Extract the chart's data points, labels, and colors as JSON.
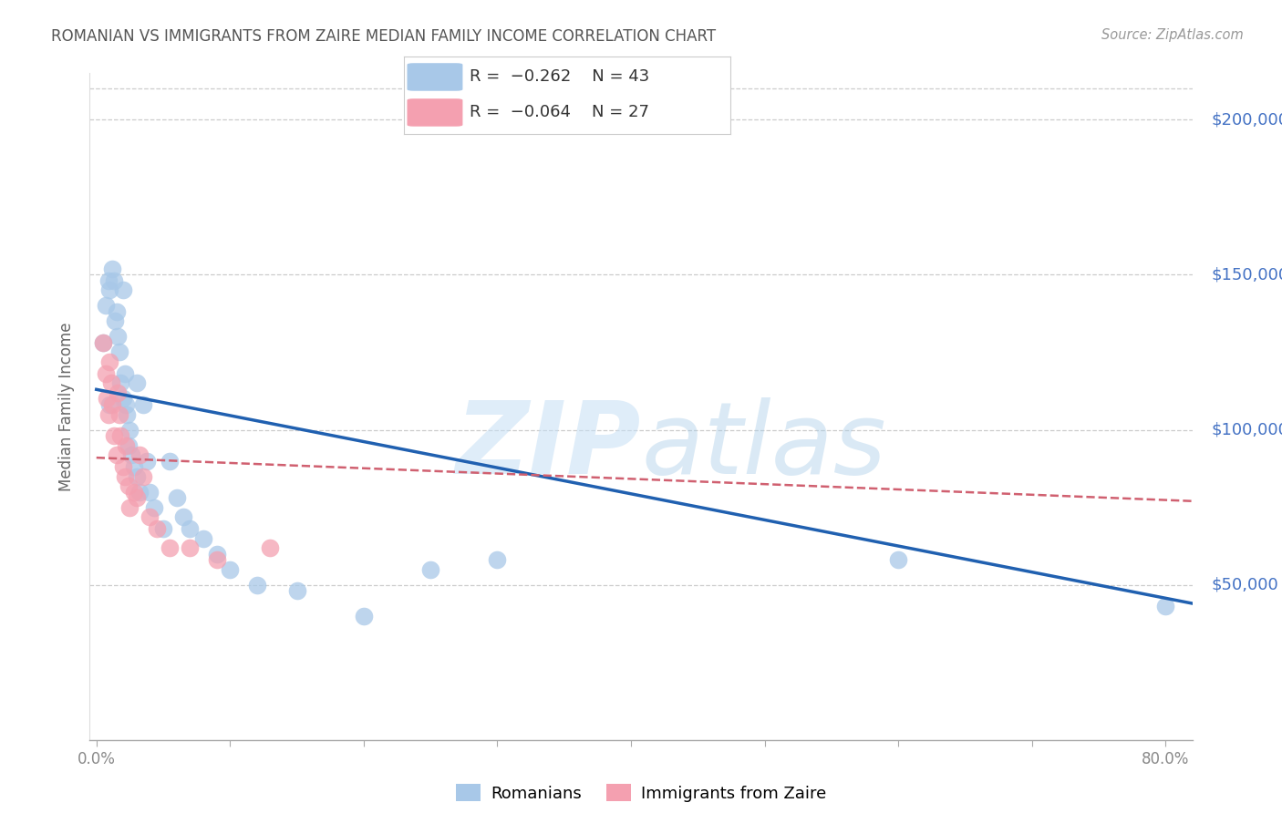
{
  "title": "ROMANIAN VS IMMIGRANTS FROM ZAIRE MEDIAN FAMILY INCOME CORRELATION CHART",
  "source": "Source: ZipAtlas.com",
  "ylabel": "Median Family Income",
  "ytick_labels": [
    "$50,000",
    "$100,000",
    "$150,000",
    "$200,000"
  ],
  "ytick_vals": [
    50000,
    100000,
    150000,
    200000
  ],
  "ylim": [
    0,
    215000
  ],
  "xlim": [
    -0.005,
    0.82
  ],
  "blue_color": "#a8c8e8",
  "pink_color": "#f4a0b0",
  "trend_blue": "#2060b0",
  "trend_pink": "#d06070",
  "legend_label_blue": "Romanians",
  "legend_label_pink": "Immigrants from Zaire",
  "watermark_zip": "ZIP",
  "watermark_atlas": "atlas",
  "grid_color": "#cccccc",
  "bg_color": "#ffffff",
  "title_color": "#555555",
  "axis_label_color": "#666666",
  "ytick_color": "#4472c4",
  "xtick_color": "#888888",
  "blue_trend_x": [
    0.0,
    0.82
  ],
  "blue_trend_y": [
    113000,
    44000
  ],
  "pink_trend_x": [
    0.0,
    0.82
  ],
  "pink_trend_y": [
    91000,
    77000
  ],
  "blue_x": [
    0.005,
    0.007,
    0.009,
    0.01,
    0.01,
    0.012,
    0.013,
    0.014,
    0.015,
    0.016,
    0.017,
    0.018,
    0.02,
    0.02,
    0.021,
    0.022,
    0.023,
    0.024,
    0.025,
    0.026,
    0.028,
    0.03,
    0.03,
    0.032,
    0.035,
    0.038,
    0.04,
    0.043,
    0.05,
    0.055,
    0.06,
    0.065,
    0.07,
    0.08,
    0.09,
    0.1,
    0.12,
    0.15,
    0.2,
    0.25,
    0.3,
    0.6,
    0.8
  ],
  "blue_y": [
    128000,
    140000,
    148000,
    145000,
    108000,
    152000,
    148000,
    135000,
    138000,
    130000,
    125000,
    115000,
    145000,
    110000,
    118000,
    108000,
    105000,
    95000,
    100000,
    92000,
    88000,
    115000,
    85000,
    80000,
    108000,
    90000,
    80000,
    75000,
    68000,
    90000,
    78000,
    72000,
    68000,
    65000,
    60000,
    55000,
    50000,
    48000,
    40000,
    55000,
    58000,
    58000,
    43000
  ],
  "pink_x": [
    0.005,
    0.007,
    0.008,
    0.009,
    0.01,
    0.011,
    0.012,
    0.013,
    0.015,
    0.016,
    0.017,
    0.018,
    0.02,
    0.021,
    0.022,
    0.024,
    0.025,
    0.028,
    0.03,
    0.032,
    0.035,
    0.04,
    0.045,
    0.055,
    0.07,
    0.09,
    0.13
  ],
  "pink_y": [
    128000,
    118000,
    110000,
    105000,
    122000,
    115000,
    108000,
    98000,
    92000,
    112000,
    105000,
    98000,
    88000,
    85000,
    95000,
    82000,
    75000,
    80000,
    78000,
    92000,
    85000,
    72000,
    68000,
    62000,
    62000,
    58000,
    62000
  ]
}
